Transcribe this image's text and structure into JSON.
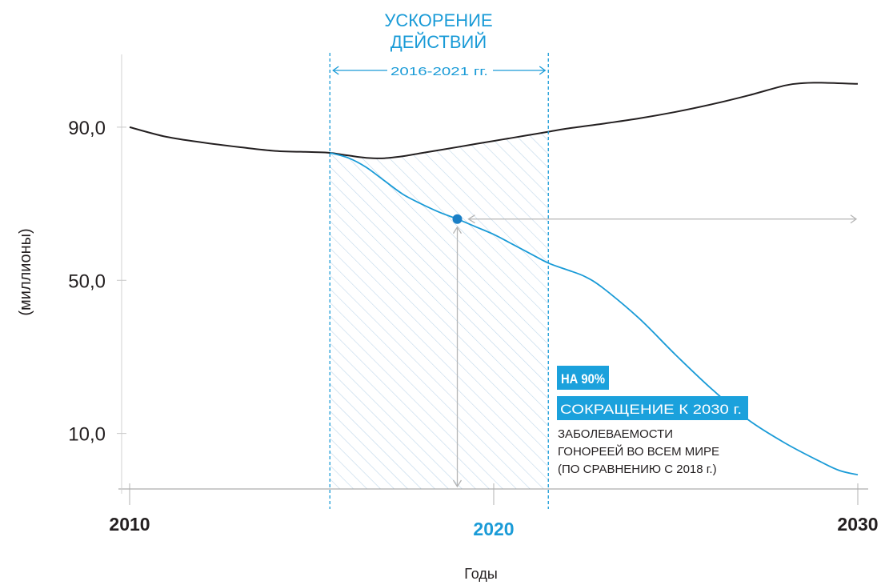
{
  "chart_data": {
    "type": "line",
    "x_ticks": [
      "2010",
      "2020",
      "2030"
    ],
    "x_tick_highlight": "2020",
    "y_ticks": [
      "90,0",
      "50,0",
      "10,0"
    ],
    "ylim": [
      -4.5,
      109
    ],
    "xlim": [
      2010,
      2030
    ],
    "xlabel": "Годы",
    "ylabel": "(миллионы)",
    "grid": false,
    "series": [
      {
        "name": "",
        "color": "#231f20",
        "x": [
          2010,
          2011,
          2012,
          2013,
          2014,
          2015,
          2015.5,
          2016,
          2016.5,
          2017,
          2017.5,
          2018,
          2018.5,
          2019,
          2019.5,
          2020,
          2020.5,
          2021,
          2021.5,
          2022,
          2023,
          2024,
          2025,
          2026,
          2027,
          2028,
          2028.5,
          2029,
          2030
        ],
        "y": [
          90,
          87.5,
          86,
          84.8,
          83.8,
          83.5,
          83.3,
          82.6,
          82.0,
          81.9,
          82.4,
          83.2,
          84.0,
          84.8,
          85.6,
          86.4,
          87.2,
          88.0,
          88.8,
          89.6,
          90.9,
          92.3,
          94.0,
          96.0,
          98.3,
          100.9,
          101.5,
          101.6,
          101.3
        ]
      },
      {
        "name": "",
        "color": "#1a9bd7",
        "x": [
          2015.5,
          2016,
          2016.5,
          2017,
          2017.5,
          2018,
          2018.5,
          2019,
          2019.5,
          2020,
          2020.5,
          2021,
          2021.5,
          2022,
          2022.5,
          2023,
          2024,
          2025,
          2026,
          2027,
          2028,
          2029,
          2029.5,
          2030
        ],
        "y": [
          83.3,
          82.0,
          79.5,
          76.0,
          72.5,
          70.0,
          67.8,
          66.0,
          64.0,
          62.0,
          59.5,
          57.0,
          54.5,
          52.8,
          51.0,
          48.0,
          40.0,
          30.5,
          21.5,
          13.5,
          7.5,
          2.5,
          0.3,
          -0.8
        ]
      }
    ],
    "annotations": {
      "period_title_line1": "УСКОРЕНИЕ",
      "period_title_line2": "ДЕЙСТВИЙ",
      "period_years": "2016-2021 гг.",
      "period_range": [
        2015.5,
        2021.5
      ],
      "marker": {
        "x": 2019.0,
        "y": 66.0,
        "color": "#1a7fc6"
      },
      "target_line1": "НА 90%",
      "target_line2": "СОКРАЩЕНИЕ К 2030 г.",
      "target_desc_line1": "ЗАБОЛЕВАЕМОСТИ",
      "target_desc_line2": "ГОНОРЕЕЙ ВО ВСЕМ МИРЕ",
      "target_desc_line3": "(ПО СРАВНЕНИЮ С 2018 г.)"
    }
  },
  "colors": {
    "accent": "#1a9bd7",
    "label_bg": "#1ba1dc",
    "line_dark": "#231f20",
    "arrow_gray": "#b5b5b5",
    "hatch": "#bdd6ea",
    "axis": "#999999"
  }
}
